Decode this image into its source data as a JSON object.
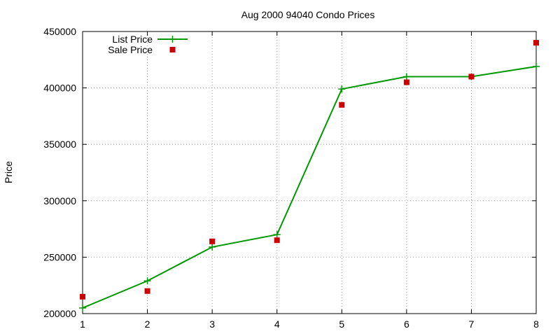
{
  "chart_data": {
    "type": "line",
    "title": "Aug 2000 94040 Condo Prices",
    "xlabel": "",
    "ylabel": "Price",
    "x": [
      1,
      2,
      3,
      4,
      5,
      6,
      7,
      8
    ],
    "xlim": [
      1,
      8
    ],
    "ylim": [
      200000,
      450000
    ],
    "xticks": [
      "1",
      "2",
      "3",
      "4",
      "5",
      "6",
      "7",
      "8"
    ],
    "yticks": [
      "200000",
      "250000",
      "300000",
      "350000",
      "400000",
      "450000"
    ],
    "grid": true,
    "legend_position": "top-left",
    "series": [
      {
        "name": "List Price",
        "style": "linespoints",
        "marker": "plus",
        "color": "#009900",
        "values": [
          205000,
          229000,
          259000,
          270000,
          399000,
          410000,
          410000,
          419000
        ]
      },
      {
        "name": "Sale Price",
        "style": "points",
        "marker": "square",
        "color": "#cc0000",
        "values": [
          215000,
          220000,
          264000,
          265000,
          385000,
          405000,
          410000,
          440000
        ]
      }
    ]
  }
}
